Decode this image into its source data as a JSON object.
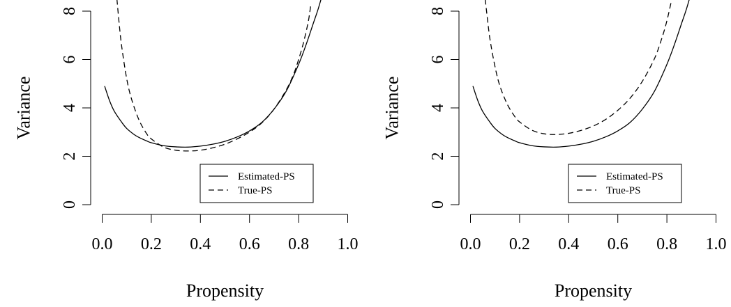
{
  "chart_data": [
    {
      "type": "line",
      "xlabel": "Propensity",
      "ylabel": "Variance",
      "xlim": [
        0.0,
        1.0
      ],
      "ylim": [
        0,
        8
      ],
      "xticks": [
        "0.0",
        "0.2",
        "0.4",
        "0.6",
        "0.8",
        "1.0"
      ],
      "yticks": [
        "0",
        "2",
        "4",
        "6",
        "8"
      ],
      "grid": false,
      "legend_position": "bottom-right",
      "series": [
        {
          "name": "Estimated-PS",
          "style": "solid",
          "x": [
            0.01,
            0.03,
            0.05,
            0.08,
            0.1,
            0.13,
            0.15,
            0.18,
            0.2,
            0.25,
            0.3,
            0.35,
            0.4,
            0.45,
            0.5,
            0.55,
            0.6,
            0.65,
            0.7,
            0.75,
            0.8,
            0.83,
            0.86,
            0.88,
            0.9
          ],
          "y": [
            4.9,
            4.3,
            3.85,
            3.4,
            3.15,
            2.9,
            2.78,
            2.64,
            2.56,
            2.44,
            2.39,
            2.38,
            2.42,
            2.5,
            2.62,
            2.8,
            3.05,
            3.4,
            3.95,
            4.7,
            5.8,
            6.6,
            7.5,
            8.1,
            8.8
          ]
        },
        {
          "name": "True-PS",
          "style": "dashed",
          "x": [
            0.06,
            0.07,
            0.08,
            0.1,
            0.12,
            0.15,
            0.18,
            0.2,
            0.25,
            0.3,
            0.35,
            0.4,
            0.45,
            0.5,
            0.55,
            0.6,
            0.65,
            0.7,
            0.75,
            0.78,
            0.8,
            0.82,
            0.84,
            0.85
          ],
          "y": [
            8.5,
            7.4,
            6.5,
            5.2,
            4.35,
            3.5,
            2.95,
            2.72,
            2.38,
            2.25,
            2.22,
            2.25,
            2.35,
            2.5,
            2.72,
            3.0,
            3.38,
            3.95,
            4.75,
            5.4,
            6.0,
            6.7,
            7.6,
            8.3
          ]
        }
      ]
    },
    {
      "type": "line",
      "xlabel": "Propensity",
      "ylabel": "Variance",
      "xlim": [
        0.0,
        1.0
      ],
      "ylim": [
        0,
        8
      ],
      "xticks": [
        "0.0",
        "0.2",
        "0.4",
        "0.6",
        "0.8",
        "1.0"
      ],
      "yticks": [
        "0",
        "2",
        "4",
        "6",
        "8"
      ],
      "grid": false,
      "legend_position": "bottom-right",
      "series": [
        {
          "name": "Estimated-PS",
          "style": "solid",
          "x": [
            0.01,
            0.03,
            0.05,
            0.08,
            0.1,
            0.13,
            0.15,
            0.18,
            0.2,
            0.25,
            0.3,
            0.35,
            0.4,
            0.45,
            0.5,
            0.55,
            0.6,
            0.65,
            0.7,
            0.75,
            0.8,
            0.83,
            0.86,
            0.88,
            0.9
          ],
          "y": [
            4.9,
            4.3,
            3.85,
            3.4,
            3.15,
            2.9,
            2.78,
            2.64,
            2.56,
            2.44,
            2.39,
            2.38,
            2.42,
            2.5,
            2.62,
            2.8,
            3.05,
            3.4,
            3.95,
            4.7,
            5.8,
            6.6,
            7.5,
            8.1,
            8.8
          ]
        },
        {
          "name": "True-PS",
          "style": "dashed",
          "x": [
            0.06,
            0.07,
            0.08,
            0.1,
            0.12,
            0.15,
            0.18,
            0.2,
            0.25,
            0.3,
            0.35,
            0.4,
            0.45,
            0.5,
            0.55,
            0.6,
            0.65,
            0.7,
            0.75,
            0.78,
            0.8,
            0.82
          ],
          "y": [
            8.5,
            7.6,
            6.8,
            5.7,
            4.9,
            4.15,
            3.65,
            3.42,
            3.08,
            2.93,
            2.9,
            2.95,
            3.07,
            3.25,
            3.52,
            3.9,
            4.4,
            5.1,
            6.05,
            6.9,
            7.6,
            8.5
          ]
        }
      ]
    }
  ]
}
